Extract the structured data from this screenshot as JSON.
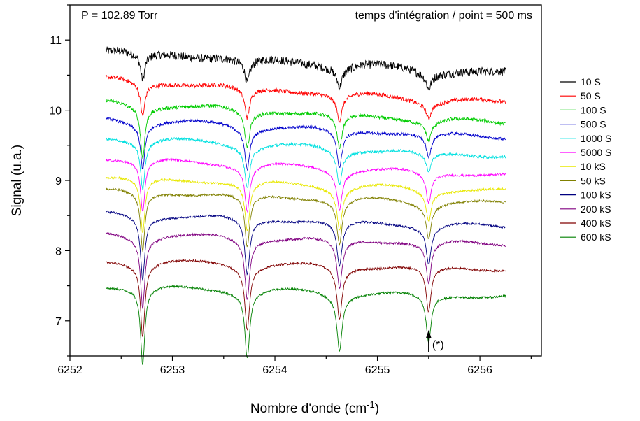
{
  "chart_data": {
    "type": "line",
    "xlabel": "Nombre d'onde (cm",
    "xlabel_sup": "-1",
    "xlabel_end": ")",
    "ylabel": "Signal (u.a.)",
    "xlim": [
      6252.0,
      6256.6
    ],
    "ylim": [
      6.5,
      11.5
    ],
    "x_ticks": [
      "6252",
      "6253",
      "6254",
      "6255",
      "6256"
    ],
    "y_ticks": [
      "7",
      "8",
      "9",
      "10",
      "11"
    ],
    "grid": false,
    "legend_position": "right",
    "annotations": {
      "pressure": "P = 102.89 Torr",
      "integration": "temps d'intégration / point = 500 ms",
      "marker": "(*)",
      "marker_x": 6255.5,
      "marker_y_range": [
        6.55,
        6.85
      ]
    },
    "x_range": [
      6252.35,
      6256.25
    ],
    "line_centers": [
      6252.71,
      6253.73,
      6254.63,
      6255.5
    ],
    "series": [
      {
        "name": "10 S",
        "color": "#000000",
        "baseline_start": 10.85,
        "baseline_end": 10.52,
        "depths": [
          0.35,
          0.3,
          0.25,
          0.2
        ],
        "noise": 0.06
      },
      {
        "name": "50 S",
        "color": "#ff0000",
        "baseline_start": 10.45,
        "baseline_end": 10.1,
        "depths": [
          0.45,
          0.4,
          0.35,
          0.2
        ],
        "noise": 0.03
      },
      {
        "name": "100 S",
        "color": "#00cc00",
        "baseline_start": 10.12,
        "baseline_end": 9.82,
        "depths": [
          0.7,
          0.5,
          0.45,
          0.25
        ],
        "noise": 0.025
      },
      {
        "name": "500 S",
        "color": "#0000cc",
        "baseline_start": 9.88,
        "baseline_end": 9.62,
        "depths": [
          0.6,
          0.55,
          0.5,
          0.3
        ],
        "noise": 0.02
      },
      {
        "name": "1000 S",
        "color": "#00e0e0",
        "baseline_start": 9.62,
        "baseline_end": 9.35,
        "depths": [
          0.65,
          0.55,
          0.45,
          0.25
        ],
        "noise": 0.02
      },
      {
        "name": "5000 S",
        "color": "#ff00ff",
        "baseline_start": 9.32,
        "baseline_end": 9.08,
        "depths": [
          0.7,
          0.6,
          0.5,
          0.4
        ],
        "noise": 0.015
      },
      {
        "name": "10 kS",
        "color": "#e8e800",
        "baseline_start": 9.05,
        "baseline_end": 8.85,
        "depths": [
          0.75,
          0.65,
          0.55,
          0.4
        ],
        "noise": 0.015
      },
      {
        "name": "50 kS",
        "color": "#808000",
        "baseline_start": 8.86,
        "baseline_end": 8.67,
        "depths": [
          0.8,
          0.7,
          0.6,
          0.45
        ],
        "noise": 0.015
      },
      {
        "name": "100 kS",
        "color": "#000080",
        "baseline_start": 8.53,
        "baseline_end": 8.34,
        "depths": [
          0.85,
          0.75,
          0.6,
          0.5
        ],
        "noise": 0.015
      },
      {
        "name": "200 kS",
        "color": "#800080",
        "baseline_start": 8.24,
        "baseline_end": 8.1,
        "depths": [
          0.95,
          0.8,
          0.65,
          0.55
        ],
        "noise": 0.015
      },
      {
        "name": "400 kS",
        "color": "#800000",
        "baseline_start": 7.86,
        "baseline_end": 7.74,
        "depths": [
          1.0,
          0.85,
          0.7,
          0.6
        ],
        "noise": 0.015
      },
      {
        "name": "600 kS",
        "color": "#008000",
        "baseline_start": 7.5,
        "baseline_end": 7.35,
        "depths": [
          1.05,
          0.9,
          0.75,
          0.65
        ],
        "noise": 0.015
      }
    ]
  }
}
